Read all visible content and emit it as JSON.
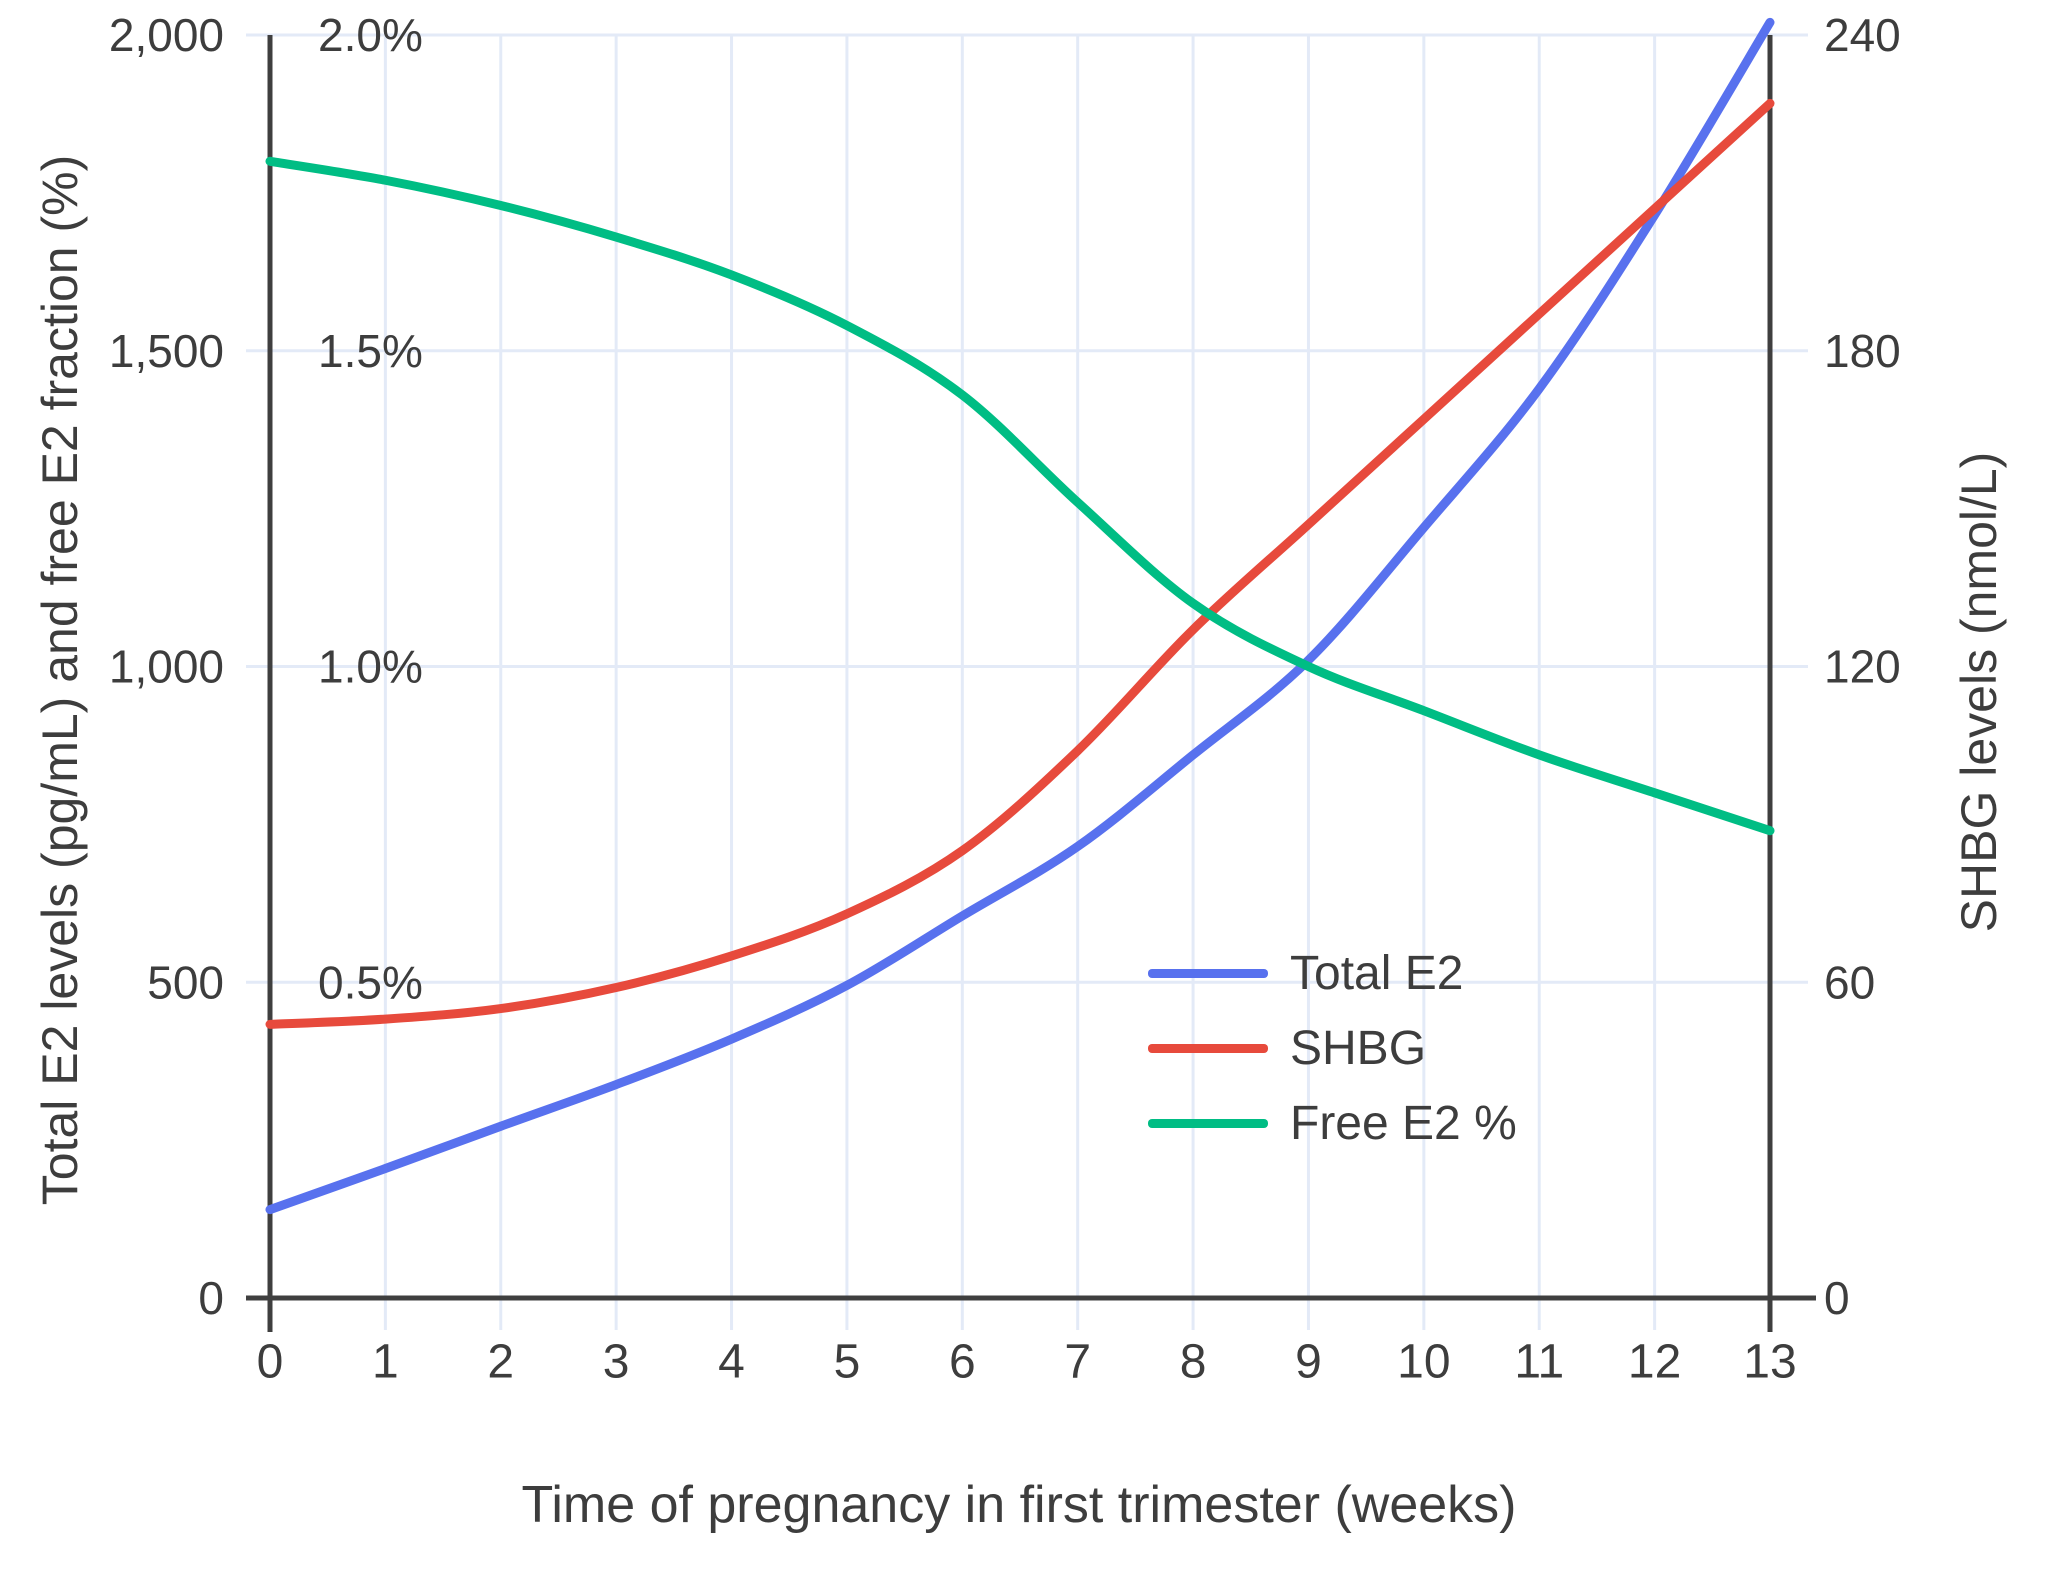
{
  "chart_data": {
    "type": "line",
    "title": "",
    "xlabel": "Time of pregnancy in first trimester (weeks)",
    "x": [
      0,
      1,
      2,
      3,
      4,
      5,
      6,
      7,
      8,
      9,
      10,
      11,
      12,
      13
    ],
    "x_tick_labels": [
      "0",
      "1",
      "2",
      "3",
      "4",
      "5",
      "6",
      "7",
      "8",
      "9",
      "10",
      "11",
      "12",
      "13"
    ],
    "xlim": [
      0,
      13
    ],
    "grid": true,
    "left_axis": {
      "title": "Total E2 levels (pg/mL) and free E2 fraction (%)",
      "range": [
        0,
        2000
      ],
      "ticks": [
        {
          "value": 0,
          "label": "0"
        },
        {
          "value": 500,
          "label": "500"
        },
        {
          "value": 1000,
          "label": "1,000"
        },
        {
          "value": 1500,
          "label": "1,500"
        },
        {
          "value": 2000,
          "label": "2,000"
        }
      ],
      "pct_tick_labels": [
        {
          "value": 500,
          "label": "0.5%"
        },
        {
          "value": 1000,
          "label": "1.0%"
        },
        {
          "value": 1500,
          "label": "1.5%"
        },
        {
          "value": 2000,
          "label": "2.0%"
        }
      ]
    },
    "right_axis": {
      "title": "SHBG levels (nmol/L)",
      "range": [
        0,
        240
      ],
      "ticks": [
        {
          "value": 0,
          "label": "0"
        },
        {
          "value": 60,
          "label": "60"
        },
        {
          "value": 120,
          "label": "120"
        },
        {
          "value": 180,
          "label": "180"
        },
        {
          "value": 240,
          "label": "240"
        }
      ]
    },
    "series": [
      {
        "name": "Total E2",
        "unit": "pg/mL",
        "axis": "left",
        "color": "#5871ee",
        "values": [
          140,
          205,
          272,
          338,
          410,
          495,
          605,
          715,
          860,
          1010,
          1220,
          1440,
          1715,
          2020
        ]
      },
      {
        "name": "SHBG",
        "unit": "nmol/L",
        "axis": "right",
        "color": "#e74a3c",
        "values": [
          52,
          53,
          55,
          59,
          65,
          73,
          85,
          104,
          127,
          147,
          167,
          187,
          207,
          227
        ]
      },
      {
        "name": "Free E2 %",
        "unit": "%",
        "axis": "left",
        "plot_multiplier": 1000,
        "color": "#00bd84",
        "values": [
          1.8,
          1.77,
          1.73,
          1.68,
          1.62,
          1.54,
          1.43,
          1.26,
          1.1,
          1.0,
          0.93,
          0.86,
          0.8,
          0.74
        ]
      }
    ],
    "legend": {
      "position": "inside-right-lower",
      "entries": [
        "Total E2",
        "SHBG",
        "Free E2 %"
      ]
    },
    "colors": {
      "grid": "#e3eaf7",
      "axis": "#3f3f3f",
      "text": "#3d3d3d",
      "background": "#ffffff"
    }
  }
}
